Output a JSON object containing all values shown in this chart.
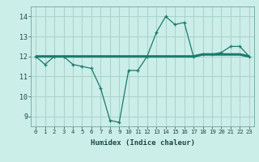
{
  "xlabel": "Humidex (Indice chaleur)",
  "x_values": [
    0,
    1,
    2,
    3,
    4,
    5,
    6,
    7,
    8,
    9,
    10,
    11,
    12,
    13,
    14,
    15,
    16,
    17,
    18,
    19,
    20,
    21,
    22,
    23
  ],
  "line1_y": [
    12.0,
    11.6,
    12.0,
    12.0,
    11.6,
    11.5,
    11.4,
    10.4,
    8.8,
    8.7,
    11.3,
    11.3,
    12.0,
    13.2,
    14.0,
    13.6,
    13.7,
    12.0,
    12.1,
    12.1,
    12.2,
    12.5,
    12.5,
    12.0
  ],
  "line2_y": [
    12.0,
    12.0,
    12.0,
    12.0,
    12.0,
    12.0,
    12.0,
    12.0,
    12.0,
    12.0,
    12.0,
    12.0,
    12.0,
    12.0,
    12.0,
    12.0,
    12.0,
    12.0,
    12.1,
    12.1,
    12.1,
    12.1,
    12.1,
    12.0
  ],
  "line_color": "#1a7a6e",
  "bg_color": "#cceee8",
  "grid_color": "#aad4cc",
  "ylim": [
    8.5,
    14.5
  ],
  "xlim": [
    -0.5,
    23.5
  ],
  "yticks": [
    9,
    10,
    11,
    12,
    13,
    14
  ],
  "xticks": [
    0,
    1,
    2,
    3,
    4,
    5,
    6,
    7,
    8,
    9,
    10,
    11,
    12,
    13,
    14,
    15,
    16,
    17,
    18,
    19,
    20,
    21,
    22,
    23
  ],
  "tick_label_fontsize": 5.2,
  "ytick_label_fontsize": 6.0,
  "xlabel_fontsize": 6.5
}
